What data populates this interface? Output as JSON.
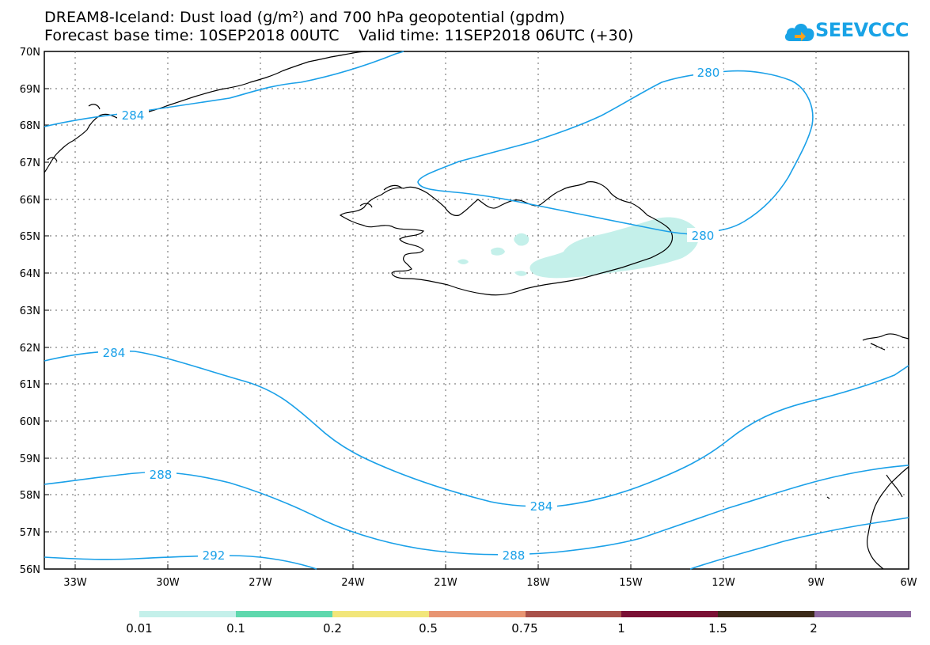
{
  "title": {
    "line1": "DREAM8-Iceland: Dust load (g/m²) and 700 hPa geopotential (gpdm)",
    "line2": "Forecast base time: 10SEP2018 00UTC    Valid time: 11SEP2018 06UTC (+30)"
  },
  "logo": {
    "text": "SEEVCCC",
    "icon": "cloud-icon",
    "color": "#19a3e6"
  },
  "map": {
    "lat_labels": [
      "70N",
      "69N",
      "68N",
      "67N",
      "66N",
      "65N",
      "64N",
      "63N",
      "62N",
      "61N",
      "60N",
      "59N",
      "58N",
      "57N",
      "56N"
    ],
    "lon_labels": [
      "33W",
      "30W",
      "27W",
      "24W",
      "21W",
      "18W",
      "15W",
      "12W",
      "9W",
      "6W"
    ],
    "contour_color": "#1aa0e8",
    "dust_color": "#c4f0ea",
    "contour_labels": [
      "280",
      "280",
      "284",
      "284",
      "284",
      "288",
      "288",
      "292"
    ]
  },
  "colorbar": {
    "colors": [
      "#c4f0ea",
      "#5ed8ad",
      "#f2e67a",
      "#e89572",
      "#a9514a",
      "#7a1034",
      "#3b2a18",
      "#8e68a0"
    ],
    "labels": [
      "0.01",
      "0.1",
      "0.2",
      "0.5",
      "0.75",
      "1",
      "1.5",
      "2"
    ]
  }
}
